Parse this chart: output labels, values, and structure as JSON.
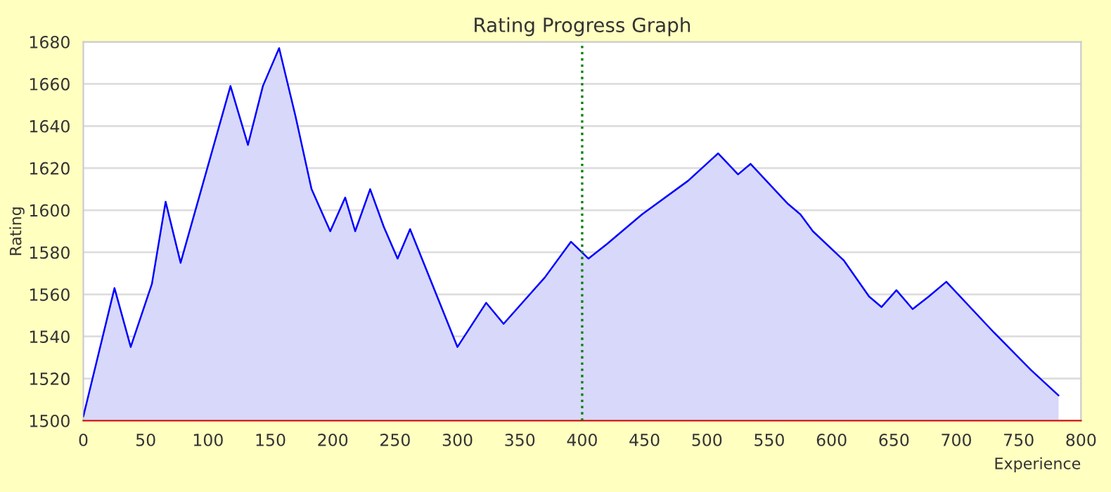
{
  "chart_data": {
    "type": "area",
    "title": "Rating Progress Graph",
    "xlabel": "Experience",
    "ylabel": "Rating",
    "series": [
      {
        "color": "#0000ff",
        "x": [
          0,
          25,
          38,
          55,
          66,
          78,
          118,
          132,
          144,
          157,
          170,
          183,
          198,
          210,
          218,
          230,
          241,
          252,
          262,
          300,
          323,
          337,
          370,
          391,
          405,
          420,
          430,
          448,
          485,
          509,
          525,
          535,
          565,
          575,
          585,
          610,
          630,
          640,
          652,
          665,
          678,
          692,
          730,
          745,
          760,
          782
        ],
        "values": [
          1502,
          1563,
          1535,
          1565,
          1604,
          1575,
          1659,
          1631,
          1659,
          1677,
          1645,
          1610,
          1590,
          1606,
          1590,
          1610,
          1592,
          1577,
          1591,
          1535,
          1556,
          1546,
          1568,
          1585,
          1577,
          1584,
          1589,
          1598,
          1614,
          1627,
          1617,
          1622,
          1603,
          1598,
          1590,
          1576,
          1559,
          1554,
          1562,
          1553,
          1559,
          1566,
          1542,
          1533,
          1524,
          1512
        ]
      }
    ],
    "xlim": [
      0,
      800
    ],
    "ylim": [
      1500,
      1680
    ],
    "xticks": [
      0,
      50,
      100,
      150,
      200,
      250,
      300,
      350,
      400,
      450,
      500,
      550,
      600,
      650,
      700,
      750,
      800
    ],
    "yticks": [
      1500,
      1520,
      1540,
      1560,
      1580,
      1600,
      1620,
      1640,
      1660,
      1680
    ],
    "grid": "y",
    "legend": false,
    "marker": "none",
    "line_style": "solid",
    "ref_lines": [
      {
        "axis": "x",
        "value": 400,
        "color": "#008000",
        "line_style": "dotted"
      }
    ]
  }
}
